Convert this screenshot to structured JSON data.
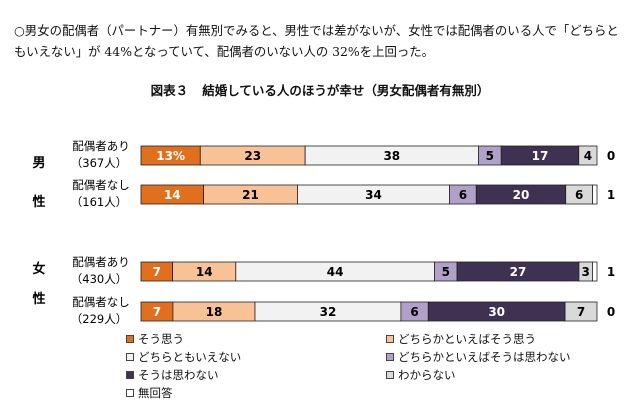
{
  "intro_text": "○男女の配偶者（パートナー）有無別でみると、男性では差がないが、女性では配偶者のいる人で「どちらともいえない」が 44%となっていて、配偶者のいない人の 32%を上回った。",
  "figure": {
    "number": "図表３",
    "title": "結婚している人のほうが幸せ（男女配偶者有無別）"
  },
  "chart_data": {
    "type": "bar",
    "orientation": "horizontal",
    "stacked": "percent",
    "title": "結婚している人のほうが幸せ（男女配偶者有無別）",
    "groups": [
      {
        "label": "男性",
        "rows": [
          {
            "label": "配偶者あり",
            "n": "（367人）",
            "values": [
              13,
              23,
              38,
              5,
              17,
              4,
              0
            ],
            "labels": [
              "13%",
              "23",
              "38",
              "5",
              "17",
              "4",
              "0"
            ]
          },
          {
            "label": "配偶者なし",
            "n": "（161人）",
            "values": [
              14,
              21,
              34,
              6,
              20,
              6,
              1
            ],
            "labels": [
              "14",
              "21",
              "34",
              "6",
              "20",
              "6",
              "1"
            ]
          }
        ]
      },
      {
        "label": "女性",
        "rows": [
          {
            "label": "配偶者あり",
            "n": "（430人）",
            "values": [
              7,
              14,
              44,
              5,
              27,
              3,
              1
            ],
            "labels": [
              "7",
              "14",
              "44",
              "5",
              "27",
              "3",
              "1"
            ]
          },
          {
            "label": "配偶者なし",
            "n": "（229人）",
            "values": [
              7,
              18,
              32,
              6,
              30,
              7,
              0
            ],
            "labels": [
              "7",
              "18",
              "32",
              "6",
              "30",
              "7",
              "0"
            ]
          }
        ]
      }
    ],
    "series": [
      {
        "name": "そう思う",
        "color": "#e0701e",
        "text_color": "#ffffff"
      },
      {
        "name": "どちらかといえばそう思う",
        "color": "#f8c196",
        "text_color": "#000000"
      },
      {
        "name": "どちらともいえない",
        "color": "#f2f2f2",
        "text_color": "#000000"
      },
      {
        "name": "どちらかといえばそうは思わない",
        "color": "#b1a0c7",
        "text_color": "#000000"
      },
      {
        "name": "そうは思わない",
        "color": "#3f3151",
        "text_color": "#ffffff"
      },
      {
        "name": "わからない",
        "color": "#d9d9d9",
        "text_color": "#000000"
      },
      {
        "name": "無回答",
        "color": "#ffffff",
        "text_color": "#000000"
      }
    ],
    "legend_position": "bottom",
    "grid": false
  }
}
